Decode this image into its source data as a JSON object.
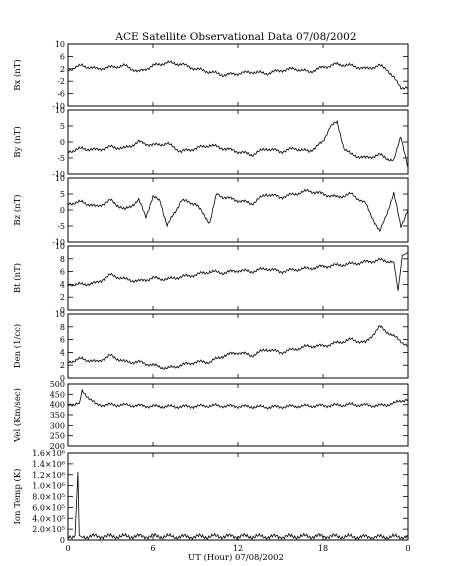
{
  "chart_data": {
    "type": "line",
    "title": "ACE Satellite Observational Data   07/08/2002",
    "xlabel": "UT (Hour)   07/08/2002",
    "x_ticks": [
      "0",
      "6",
      "12",
      "18",
      "0"
    ],
    "xlim": [
      0,
      24
    ],
    "panels": [
      {
        "id": "bx",
        "ylabel": "Bx (nT)",
        "ylim": [
          -10,
          10
        ],
        "y_ticks": [
          "10",
          "6",
          "2",
          "-2",
          "-6",
          "-10"
        ],
        "y_tick_values": [
          10,
          6,
          2,
          -2,
          -6,
          -10
        ],
        "x": [
          0,
          0.5,
          1,
          1.5,
          2,
          3,
          4,
          5,
          6,
          7,
          8,
          9,
          10,
          11,
          12,
          13,
          14,
          15,
          16,
          17,
          18,
          19,
          20,
          21,
          22,
          22.5,
          23,
          23.5,
          24
        ],
        "values": [
          1.5,
          2.5,
          3,
          2.5,
          2,
          2.5,
          3,
          1,
          3,
          4,
          3.5,
          2,
          1,
          0,
          0.5,
          1,
          0.5,
          1.5,
          2,
          1,
          2.5,
          3.5,
          3,
          2,
          3,
          2,
          -1,
          -4,
          -4
        ]
      },
      {
        "id": "by",
        "ylabel": "By (nT)",
        "ylim": [
          -10,
          10
        ],
        "y_ticks": [
          "10",
          "5",
          "0",
          "-5",
          "-10"
        ],
        "y_tick_values": [
          10,
          5,
          0,
          -5,
          -10
        ],
        "x": [
          0,
          1,
          2,
          3,
          4,
          5,
          6,
          7,
          8,
          9,
          10,
          11,
          12,
          13,
          14,
          15,
          16,
          17,
          18,
          18.5,
          19,
          19.5,
          20,
          21,
          22,
          23,
          23.5,
          24
        ],
        "values": [
          -3,
          -2,
          -2.5,
          -1.5,
          -2,
          0,
          -1,
          -0.5,
          -3,
          -2,
          -1,
          -2,
          -3,
          -4,
          -2,
          -3,
          -2,
          -3,
          0,
          5,
          6,
          -2,
          -4,
          -5,
          -4,
          -6,
          2,
          -8
        ]
      },
      {
        "id": "bz",
        "ylabel": "Bz (nT)",
        "ylim": [
          -10,
          10
        ],
        "y_ticks": [
          "10",
          "5",
          "0",
          "-5",
          "-10"
        ],
        "y_tick_values": [
          10,
          5,
          0,
          -5,
          -10
        ],
        "x": [
          0,
          1,
          2,
          3,
          4,
          5,
          5.5,
          6,
          6.5,
          7,
          8,
          9,
          10,
          10.5,
          11,
          12,
          13,
          14,
          15,
          16,
          17,
          18,
          19,
          20,
          21,
          22,
          23,
          23.5,
          24
        ],
        "values": [
          2,
          2.5,
          1,
          3,
          0,
          3,
          -2,
          4,
          3,
          -5,
          3,
          2,
          -4,
          5,
          4,
          3,
          2,
          5,
          4,
          5,
          6,
          5,
          4,
          5,
          2,
          -7,
          5,
          -5,
          0
        ]
      },
      {
        "id": "bt",
        "ylabel": "Bt (nT)",
        "ylim": [
          0,
          10
        ],
        "y_ticks": [
          "10",
          "8",
          "6",
          "4",
          "2",
          "0"
        ],
        "y_tick_values": [
          10,
          8,
          6,
          4,
          2,
          0
        ],
        "x": [
          0,
          1,
          2,
          3,
          4,
          5,
          6,
          7,
          8,
          9,
          10,
          11,
          12,
          13,
          14,
          15,
          16,
          17,
          18,
          19,
          20,
          21,
          22,
          23,
          23.3,
          23.6,
          24
        ],
        "values": [
          4,
          4,
          4.2,
          5.5,
          4.8,
          4.5,
          5,
          4.8,
          5.2,
          5.5,
          6,
          5.8,
          6.2,
          6,
          6.5,
          6,
          6.3,
          6.5,
          6.8,
          7,
          7.2,
          7.5,
          7.8,
          7.5,
          3,
          8.5,
          9
        ]
      },
      {
        "id": "den",
        "ylabel": "Den (1/cc)",
        "ylim": [
          0,
          10
        ],
        "y_ticks": [
          "10",
          "8",
          "6",
          "4",
          "2",
          "0"
        ],
        "y_tick_values": [
          10,
          8,
          6,
          4,
          2,
          0
        ],
        "x": [
          0,
          1,
          2,
          3,
          4,
          5,
          6,
          7,
          8,
          9,
          10,
          11,
          12,
          13,
          14,
          15,
          16,
          17,
          18,
          19,
          20,
          21,
          22,
          23,
          24
        ],
        "values": [
          2.5,
          3,
          2.5,
          3.5,
          2.5,
          2.5,
          2,
          1.5,
          2,
          2.5,
          2.5,
          3.5,
          4,
          3.5,
          4.5,
          4,
          4.5,
          5,
          5,
          5.5,
          6,
          5.5,
          8,
          6.5,
          5
        ]
      },
      {
        "id": "vel",
        "ylabel": "Vel (Km/sec)",
        "ylim": [
          200,
          500
        ],
        "y_ticks": [
          "500",
          "450",
          "400",
          "350",
          "300",
          "250",
          "200"
        ],
        "y_tick_values": [
          500,
          450,
          400,
          350,
          300,
          250,
          200
        ],
        "x": [
          0,
          0.8,
          1,
          2,
          4,
          6,
          8,
          10,
          12,
          14,
          16,
          18,
          20,
          22,
          23,
          23.5,
          24
        ],
        "values": [
          400,
          405,
          465,
          400,
          398,
          392,
          390,
          395,
          392,
          388,
          392,
          395,
          400,
          395,
          405,
          420,
          425
        ]
      },
      {
        "id": "temp",
        "ylabel": "Ion Temp (K)",
        "ylim": [
          0,
          1600000
        ],
        "y_ticks": [
          "1.6×10⁶",
          "1.4×10⁶",
          "1.2×10⁶",
          "1.0×10⁶",
          "8.0×10⁵",
          "6.0×10⁵",
          "4.0×10⁵",
          "2.0×10⁵",
          "0"
        ],
        "y_tick_values": [
          1600000,
          1400000,
          1200000,
          1000000,
          800000,
          600000,
          400000,
          200000,
          0
        ],
        "x": [
          0,
          0.5,
          0.7,
          0.8,
          1,
          2,
          4,
          6,
          8,
          10,
          12,
          14,
          16,
          18,
          20,
          22,
          24
        ],
        "values": [
          60000,
          80000,
          1250000,
          80000,
          60000,
          70000,
          65000,
          70000,
          60000,
          65000,
          70000,
          60000,
          65000,
          70000,
          60000,
          55000,
          60000
        ]
      }
    ]
  }
}
